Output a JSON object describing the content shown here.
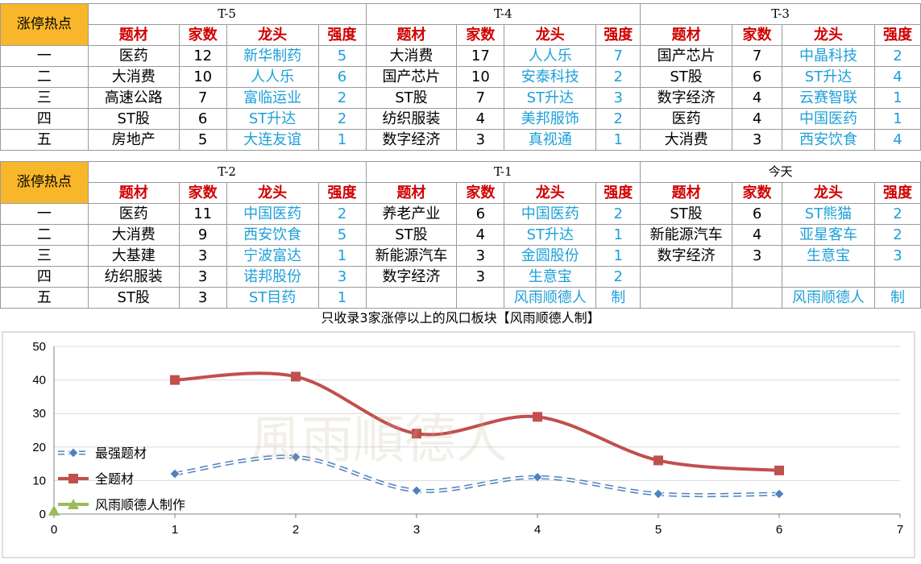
{
  "table_top": {
    "hot_label": "涨停热点",
    "periods": [
      "T-5",
      "T-4",
      "T-3"
    ],
    "col_headers": [
      "题材",
      "家数",
      "龙头",
      "强度"
    ],
    "ranks": [
      "一",
      "二",
      "三",
      "四",
      "五"
    ],
    "rows": [
      [
        [
          "医药",
          "12",
          "新华制药",
          "5"
        ],
        [
          "大消费",
          "17",
          "人人乐",
          "7"
        ],
        [
          "国产芯片",
          "7",
          "中晶科技",
          "2"
        ]
      ],
      [
        [
          "大消费",
          "10",
          "人人乐",
          "6"
        ],
        [
          "国产芯片",
          "10",
          "安泰科技",
          "2"
        ],
        [
          "ST股",
          "6",
          "ST升达",
          "4"
        ]
      ],
      [
        [
          "高速公路",
          "7",
          "富临运业",
          "2"
        ],
        [
          "ST股",
          "7",
          "ST升达",
          "3"
        ],
        [
          "数字经济",
          "4",
          "云赛智联",
          "1"
        ]
      ],
      [
        [
          "ST股",
          "6",
          "ST升达",
          "2"
        ],
        [
          "纺织服装",
          "4",
          "美邦服饰",
          "2"
        ],
        [
          "医药",
          "4",
          "中国医药",
          "1"
        ]
      ],
      [
        [
          "房地产",
          "5",
          "大连友谊",
          "1"
        ],
        [
          "数字经济",
          "3",
          "真视通",
          "1"
        ],
        [
          "大消费",
          "3",
          "西安饮食",
          "4"
        ]
      ]
    ]
  },
  "table_bottom": {
    "hot_label": "涨停热点",
    "periods": [
      "T-2",
      "T-1",
      "今天"
    ],
    "col_headers": [
      "题材",
      "家数",
      "龙头",
      "强度"
    ],
    "ranks": [
      "一",
      "二",
      "三",
      "四",
      "五"
    ],
    "rows": [
      [
        [
          "医药",
          "11",
          "中国医药",
          "2"
        ],
        [
          "养老产业",
          "6",
          "中国医药",
          "2"
        ],
        [
          "ST股",
          "6",
          "ST熊猫",
          "2"
        ]
      ],
      [
        [
          "大消费",
          "9",
          "西安饮食",
          "5"
        ],
        [
          "ST股",
          "4",
          "ST升达",
          "1"
        ],
        [
          "新能源汽车",
          "4",
          "亚星客车",
          "2"
        ]
      ],
      [
        [
          "大基建",
          "3",
          "宁波富达",
          "1"
        ],
        [
          "新能源汽车",
          "3",
          "金圆股份",
          "1"
        ],
        [
          "数字经济",
          "3",
          "生意宝",
          "3"
        ]
      ],
      [
        [
          "纺织服装",
          "3",
          "诺邦股份",
          "3"
        ],
        [
          "数字经济",
          "3",
          "生意宝",
          "2"
        ],
        [
          "",
          "",
          "",
          ""
        ]
      ],
      [
        [
          "ST股",
          "3",
          "ST目药",
          "1"
        ],
        [
          "",
          "",
          "风雨顺德人",
          "制"
        ],
        [
          "",
          "",
          "风雨顺德人",
          "制"
        ]
      ]
    ]
  },
  "chart_data": {
    "type": "line",
    "title": "只收录3家涨停以上的风口板块【风雨顺德人制】",
    "xlim": [
      0,
      7
    ],
    "ylim": [
      0,
      50
    ],
    "x_ticks": [
      0,
      1,
      2,
      3,
      4,
      5,
      6,
      7
    ],
    "y_ticks": [
      0,
      10,
      20,
      30,
      40,
      50
    ],
    "grid": true,
    "legend_position": "left",
    "series": [
      {
        "name": "最强题材",
        "x": [
          1,
          2,
          3,
          4,
          5,
          6
        ],
        "values": [
          12,
          17,
          7,
          11,
          6,
          6
        ],
        "color": "#4f81bd",
        "style": "dashed",
        "marker": "diamond"
      },
      {
        "name": "全题材",
        "x": [
          1,
          2,
          3,
          4,
          5,
          6
        ],
        "values": [
          40,
          41,
          24,
          29,
          16,
          13
        ],
        "color": "#c0504d",
        "style": "solid",
        "marker": "square"
      },
      {
        "name": "风雨顺德人制作",
        "x": [
          0
        ],
        "values": [
          1
        ],
        "color": "#9bbb59",
        "style": "solid",
        "marker": "triangle"
      }
    ]
  },
  "watermark": "風雨順德人",
  "colors": {
    "hot_bg": "#f8b62a",
    "header_red": "#d00000",
    "leader_blue": "#1ea0d8"
  }
}
